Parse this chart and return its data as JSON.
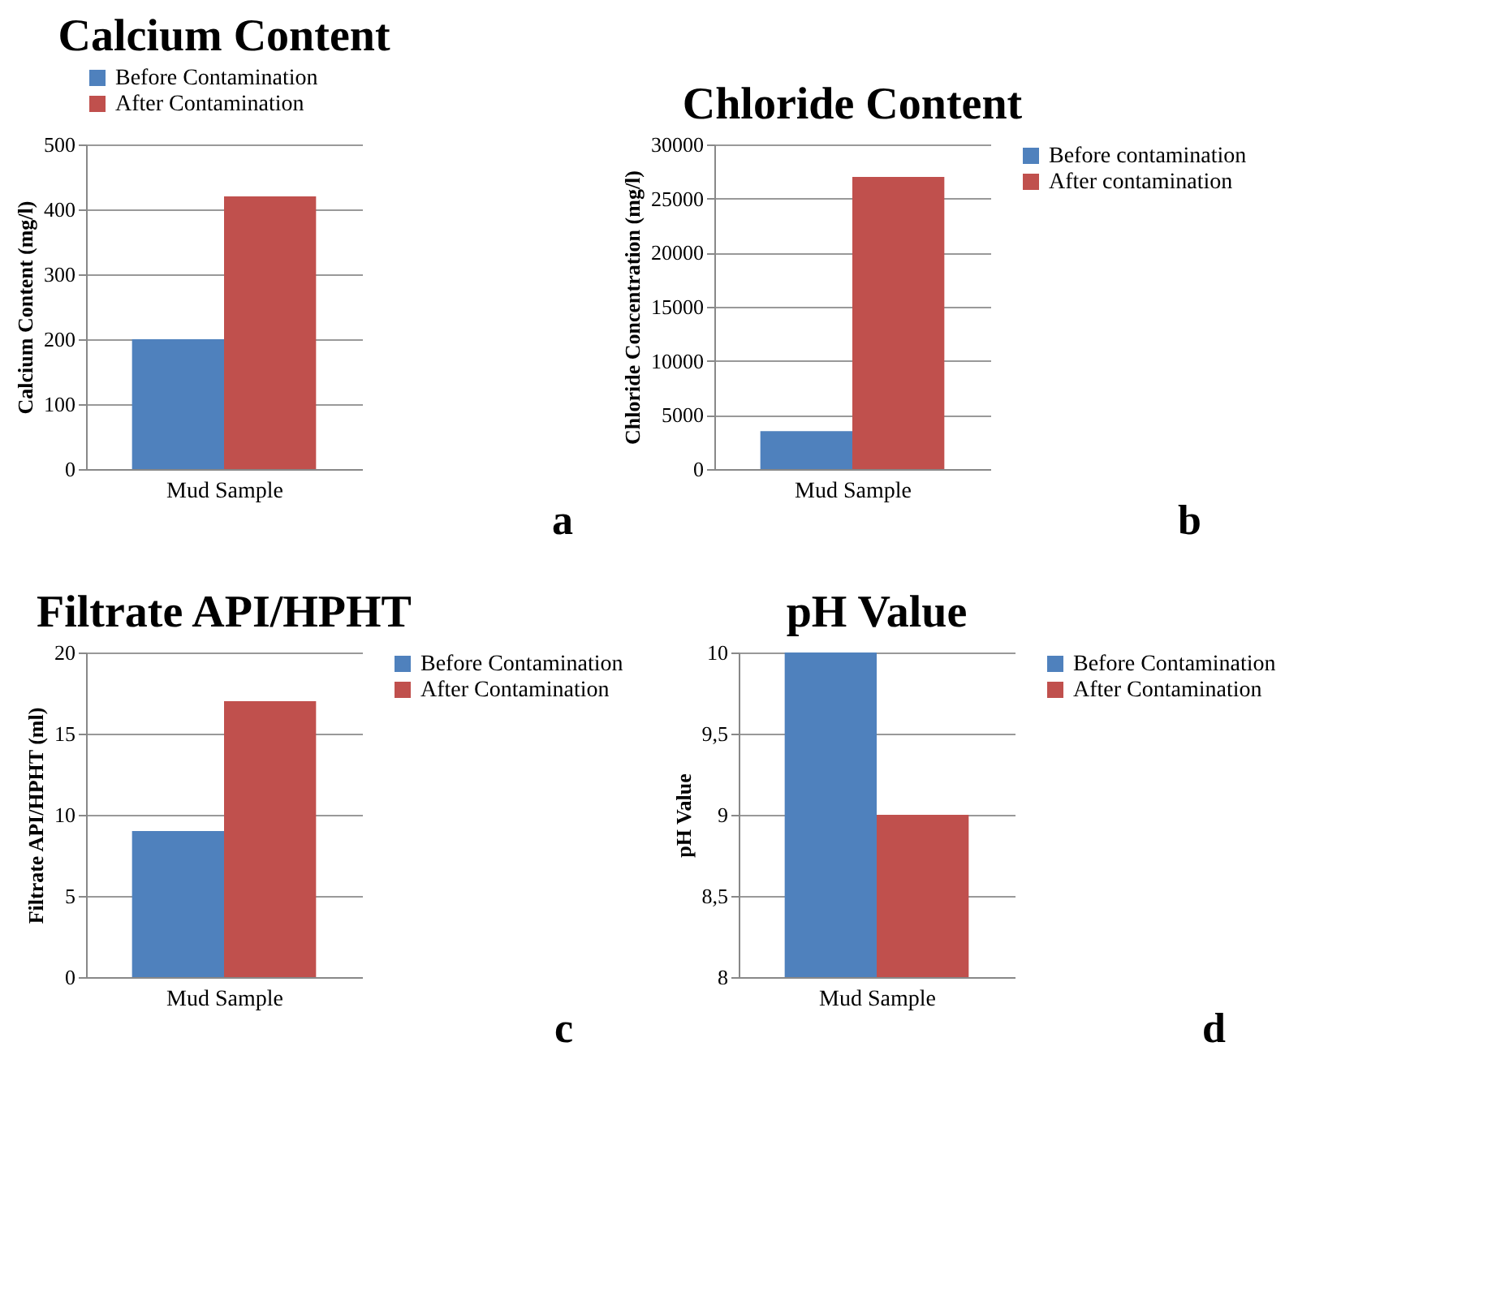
{
  "chart_data": [
    {
      "type": "bar",
      "title": "Calcium Content",
      "xlabel": "Mud Sample",
      "ylabel": "Calcium Content (mg/l)",
      "categories": [
        null
      ],
      "series": [
        {
          "name": "Before Contamination",
          "color": "#4f81bd",
          "values": [
            200
          ]
        },
        {
          "name": "After Contamination",
          "color": "#c0504d",
          "values": [
            420
          ]
        }
      ],
      "ylim": [
        0,
        500
      ],
      "yticks": [
        0,
        100,
        200,
        300,
        400,
        500
      ],
      "grid": "y",
      "legend": "top",
      "annotations": [
        "a"
      ]
    },
    {
      "type": "bar",
      "title": "Chloride Content",
      "xlabel": "Mud Sample",
      "ylabel": "Chloride Concentration (mg/l)",
      "categories": [
        null
      ],
      "series": [
        {
          "name": "Before contamination",
          "color": "#4f81bd",
          "values": [
            3500
          ]
        },
        {
          "name": "After contamination",
          "color": "#c0504d",
          "values": [
            27000
          ]
        }
      ],
      "ylim": [
        0,
        30000
      ],
      "yticks": [
        0,
        5000,
        10000,
        15000,
        20000,
        25000,
        30000
      ],
      "grid": "y",
      "legend": "right",
      "annotations": [
        "b"
      ]
    },
    {
      "type": "bar",
      "title": "Filtrate API/HPHT",
      "xlabel": "Mud Sample",
      "ylabel": "Filtrate API/HPHT (ml)",
      "categories": [
        null
      ],
      "series": [
        {
          "name": "Before Contamination",
          "color": "#4f81bd",
          "values": [
            9
          ]
        },
        {
          "name": "After Contamination",
          "color": "#c0504d",
          "values": [
            17
          ]
        }
      ],
      "ylim": [
        0,
        20
      ],
      "yticks": [
        0,
        5,
        10,
        15,
        20
      ],
      "grid": "y",
      "legend": "right",
      "annotations": [
        "c"
      ]
    },
    {
      "type": "bar",
      "title": "pH Value",
      "xlabel": "Mud Sample",
      "ylabel": "pH Value",
      "categories": [
        null
      ],
      "series": [
        {
          "name": "Before Contamination",
          "color": "#4f81bd",
          "values": [
            10
          ]
        },
        {
          "name": "After Contamination",
          "color": "#c0504d",
          "values": [
            9
          ]
        }
      ],
      "ylim": [
        8,
        10
      ],
      "yticks": [
        8,
        {
          "value": 8.5,
          "label": "8,5"
        },
        9,
        {
          "value": 9.5,
          "label": "9,5"
        },
        10
      ],
      "grid": "y",
      "legend": "right",
      "annotations": [
        "d"
      ]
    }
  ]
}
